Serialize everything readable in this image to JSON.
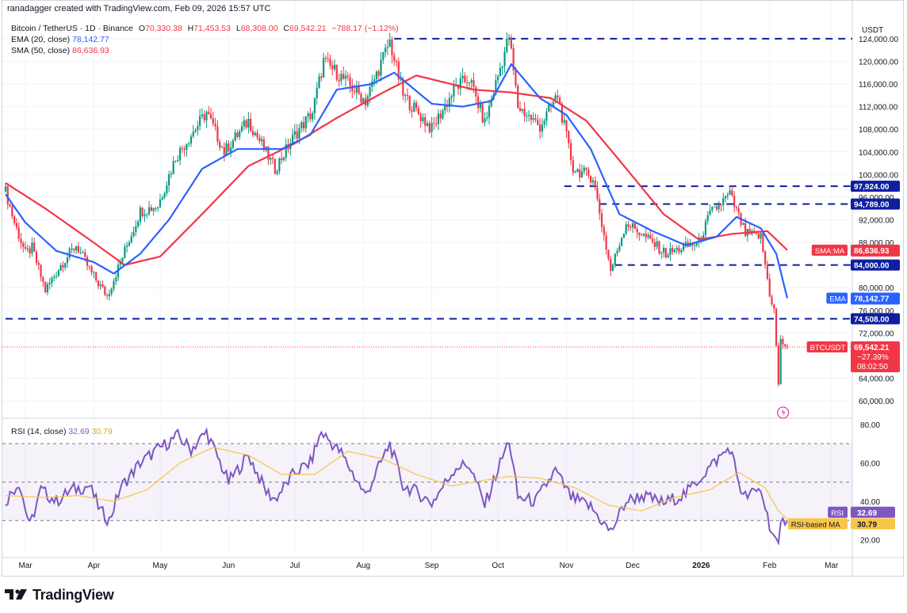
{
  "header": {
    "attribution": "ranadagger created with TradingView.com, Feb 09, 2026 15:57 UTC",
    "symbol": "Bitcoin / TetherUS · 1D · Binance",
    "ohlc": {
      "o_label": "O",
      "o": "70,330.38",
      "h_label": "H",
      "h": "71,453.53",
      "l_label": "L",
      "l": "68,308.00",
      "c_label": "C",
      "c": "69,542.21",
      "change": "−788.17 (−1.12%)"
    },
    "ema_label": "EMA (20, close)",
    "ema_value": "78,142.77",
    "sma_label": "SMA (50, close)",
    "sma_value": "86,636.93"
  },
  "rsi_header": {
    "label": "RSI (14, close)",
    "rsi": "32.69",
    "ma": "30.79"
  },
  "footer": {
    "brand": "TradingView"
  },
  "colors": {
    "up": "#089981",
    "down": "#f23645",
    "ema": "#2962ff",
    "sma": "#f23645",
    "rsi": "#7e57c2",
    "rsi_ma": "#f7c548",
    "level": "#0d1ea0"
  },
  "chart_data": [
    {
      "type": "candlestick",
      "currency_label": "USDT",
      "y_ticks": [
        "124,000.00",
        "120,000.00",
        "116,000.00",
        "112,000.00",
        "108,000.00",
        "104,000.00",
        "100,000.00",
        "96,000.00",
        "92,000.00",
        "88,000.00",
        "80,000.00",
        "76,000.00",
        "72,000.00",
        "64,000.00",
        "60,000.00"
      ],
      "y_tick_values": [
        124000,
        120000,
        116000,
        112000,
        108000,
        104000,
        100000,
        96000,
        92000,
        88000,
        80000,
        76000,
        72000,
        64000,
        60000
      ],
      "ylim": [
        57500,
        126500
      ],
      "x_labels": [
        "Mar",
        "Apr",
        "May",
        "Jun",
        "Jul",
        "Aug",
        "Sep",
        "Oct",
        "Nov",
        "Dec",
        "2026",
        "Feb",
        "Mar"
      ],
      "x_label_dates": [
        "2025-03-01",
        "2025-04-01",
        "2025-05-01",
        "2025-06-01",
        "2025-07-01",
        "2025-08-01",
        "2025-09-01",
        "2025-10-01",
        "2025-11-01",
        "2025-12-01",
        "2026-01-01",
        "2026-02-01",
        "2026-03-01"
      ],
      "x_range": [
        "2025-02-20",
        "2026-03-09"
      ],
      "levels": [
        {
          "value": 124000,
          "label": "",
          "start": "2025-08-15"
        },
        {
          "value": 97924,
          "label": "97,924.00",
          "start": "2025-10-31"
        },
        {
          "value": 94789,
          "label": "94,789.00",
          "start": "2025-11-16"
        },
        {
          "value": 84000,
          "label": "84,000.00",
          "start": "2025-11-23"
        },
        {
          "value": 74508,
          "label": "74,508.00",
          "start": "2025-02-20"
        }
      ],
      "price_tags": [
        {
          "label": "SMA:MA",
          "value": "86,636.93",
          "y": 86636.93,
          "color": "#f23645"
        },
        {
          "label": "EMA",
          "value": "78,142.77",
          "y": 78142.77,
          "color": "#2962ff"
        },
        {
          "label": "BTCUSDT",
          "value": "69,542.21",
          "extra": [
            "−27.39%",
            "08:02:50"
          ],
          "y": 69542.21,
          "color": "#f23645"
        }
      ],
      "close_anchors": [
        [
          "2025-02-20",
          97000
        ],
        [
          "2025-02-24",
          91500
        ],
        [
          "2025-03-01",
          86000
        ],
        [
          "2025-03-04",
          87000
        ],
        [
          "2025-03-10",
          79500
        ],
        [
          "2025-03-17",
          84000
        ],
        [
          "2025-03-24",
          87500
        ],
        [
          "2025-03-31",
          82500
        ],
        [
          "2025-04-07",
          78500
        ],
        [
          "2025-04-12",
          83500
        ],
        [
          "2025-04-22",
          93500
        ],
        [
          "2025-04-30",
          94500
        ],
        [
          "2025-05-08",
          103000
        ],
        [
          "2025-05-22",
          111000
        ],
        [
          "2025-05-30",
          104000
        ],
        [
          "2025-06-10",
          109500
        ],
        [
          "2025-06-22",
          101000
        ],
        [
          "2025-07-01",
          107000
        ],
        [
          "2025-07-09",
          111000
        ],
        [
          "2025-07-14",
          120000
        ],
        [
          "2025-07-20",
          118000
        ],
        [
          "2025-08-02",
          113000
        ],
        [
          "2025-08-13",
          123500
        ],
        [
          "2025-08-19",
          114000
        ],
        [
          "2025-09-01",
          108000
        ],
        [
          "2025-09-12",
          115500
        ],
        [
          "2025-09-18",
          117000
        ],
        [
          "2025-09-25",
          109000
        ],
        [
          "2025-10-06",
          124500
        ],
        [
          "2025-10-10",
          112000
        ],
        [
          "2025-10-20",
          108500
        ],
        [
          "2025-10-28",
          114000
        ],
        [
          "2025-11-04",
          101000
        ],
        [
          "2025-11-13",
          99500
        ],
        [
          "2025-11-21",
          83000
        ],
        [
          "2025-11-28",
          91500
        ],
        [
          "2025-12-05",
          89500
        ],
        [
          "2025-12-16",
          86000
        ],
        [
          "2025-12-31",
          88000
        ],
        [
          "2026-01-05",
          93000
        ],
        [
          "2026-01-14",
          96500
        ],
        [
          "2026-01-21",
          89500
        ],
        [
          "2026-01-28",
          89000
        ],
        [
          "2026-02-01",
          79000
        ],
        [
          "2026-02-03",
          76000
        ],
        [
          "2026-02-05",
          63000
        ],
        [
          "2026-02-06",
          70500
        ],
        [
          "2026-02-09",
          69542
        ]
      ],
      "ema_anchors": [
        [
          "2025-02-20",
          96500
        ],
        [
          "2025-03-01",
          91500
        ],
        [
          "2025-03-15",
          86500
        ],
        [
          "2025-04-01",
          84500
        ],
        [
          "2025-04-10",
          82500
        ],
        [
          "2025-04-22",
          86000
        ],
        [
          "2025-05-05",
          92000
        ],
        [
          "2025-05-20",
          101000
        ],
        [
          "2025-06-05",
          104500
        ],
        [
          "2025-06-25",
          104500
        ],
        [
          "2025-07-08",
          107000
        ],
        [
          "2025-07-20",
          115000
        ],
        [
          "2025-08-05",
          116000
        ],
        [
          "2025-08-15",
          118000
        ],
        [
          "2025-09-01",
          112500
        ],
        [
          "2025-09-15",
          112000
        ],
        [
          "2025-09-28",
          113000
        ],
        [
          "2025-10-07",
          119500
        ],
        [
          "2025-10-20",
          113500
        ],
        [
          "2025-11-01",
          110500
        ],
        [
          "2025-11-12",
          104500
        ],
        [
          "2025-11-25",
          93000
        ],
        [
          "2025-12-10",
          90000
        ],
        [
          "2025-12-25",
          87500
        ],
        [
          "2026-01-08",
          89000
        ],
        [
          "2026-01-17",
          92500
        ],
        [
          "2026-01-28",
          90500
        ],
        [
          "2026-02-04",
          86000
        ],
        [
          "2026-02-09",
          78142
        ]
      ],
      "sma_anchors": [
        [
          "2025-02-20",
          98500
        ],
        [
          "2025-03-10",
          94000
        ],
        [
          "2025-03-30",
          88500
        ],
        [
          "2025-04-15",
          84000
        ],
        [
          "2025-05-01",
          85500
        ],
        [
          "2025-05-20",
          93000
        ],
        [
          "2025-06-10",
          101500
        ],
        [
          "2025-07-01",
          105500
        ],
        [
          "2025-07-20",
          110000
        ],
        [
          "2025-08-10",
          114500
        ],
        [
          "2025-08-25",
          117500
        ],
        [
          "2025-09-20",
          115000
        ],
        [
          "2025-10-07",
          114500
        ],
        [
          "2025-10-25",
          113500
        ],
        [
          "2025-11-10",
          109500
        ],
        [
          "2025-11-25",
          102500
        ],
        [
          "2025-12-15",
          93000
        ],
        [
          "2025-12-31",
          88500
        ],
        [
          "2026-01-15",
          89500
        ],
        [
          "2026-01-31",
          90000
        ],
        [
          "2026-02-09",
          86637
        ]
      ]
    },
    {
      "type": "line",
      "title": "RSI (14, close)",
      "y_ticks": [
        "80.00",
        "60.00",
        "40.00",
        "20.00"
      ],
      "y_tick_values": [
        80,
        60,
        40,
        20
      ],
      "ylim": [
        12,
        82
      ],
      "bands": {
        "upper": 70,
        "middle": 50,
        "lower": 30
      },
      "price_tags": [
        {
          "label": "RSI",
          "value": "32.69",
          "y": 32.69,
          "color": "#7e57c2"
        },
        {
          "label": "RSI-based MA",
          "value": "30.79",
          "y": 30.79,
          "color": "#f7c548"
        }
      ],
      "series": [
        {
          "name": "RSI",
          "anchors": [
            [
              "2025-02-20",
              40
            ],
            [
              "2025-02-26",
              50
            ],
            [
              "2025-03-03",
              27
            ],
            [
              "2025-03-08",
              46
            ],
            [
              "2025-03-15",
              40
            ],
            [
              "2025-03-22",
              46
            ],
            [
              "2025-03-30",
              48
            ],
            [
              "2025-04-04",
              35
            ],
            [
              "2025-04-08",
              30
            ],
            [
              "2025-04-13",
              47
            ],
            [
              "2025-04-22",
              60
            ],
            [
              "2025-04-30",
              67
            ],
            [
              "2025-05-09",
              74
            ],
            [
              "2025-05-15",
              67
            ],
            [
              "2025-05-22",
              76
            ],
            [
              "2025-06-01",
              50
            ],
            [
              "2025-06-10",
              64
            ],
            [
              "2025-06-18",
              45
            ],
            [
              "2025-06-22",
              41
            ],
            [
              "2025-07-01",
              55
            ],
            [
              "2025-07-08",
              60
            ],
            [
              "2025-07-13",
              76
            ],
            [
              "2025-07-22",
              65
            ],
            [
              "2025-08-02",
              43
            ],
            [
              "2025-08-13",
              70
            ],
            [
              "2025-08-19",
              48
            ],
            [
              "2025-08-25",
              45
            ],
            [
              "2025-09-01",
              39
            ],
            [
              "2025-09-12",
              58
            ],
            [
              "2025-09-18",
              59
            ],
            [
              "2025-09-25",
              38
            ],
            [
              "2025-10-06",
              72
            ],
            [
              "2025-10-10",
              42
            ],
            [
              "2025-10-18",
              40
            ],
            [
              "2025-10-27",
              56
            ],
            [
              "2025-11-03",
              42
            ],
            [
              "2025-11-12",
              37
            ],
            [
              "2025-11-21",
              24
            ],
            [
              "2025-11-28",
              40
            ],
            [
              "2025-12-05",
              43
            ],
            [
              "2025-12-15",
              39
            ],
            [
              "2025-12-25",
              44
            ],
            [
              "2026-01-05",
              58
            ],
            [
              "2026-01-14",
              68
            ],
            [
              "2026-01-20",
              42
            ],
            [
              "2026-01-28",
              46
            ],
            [
              "2026-02-01",
              28
            ],
            [
              "2026-02-05",
              15
            ],
            [
              "2026-02-06",
              27
            ],
            [
              "2026-02-09",
              32.69
            ]
          ]
        },
        {
          "name": "RSI-based MA",
          "anchors": [
            [
              "2025-02-20",
              43
            ],
            [
              "2025-03-10",
              42
            ],
            [
              "2025-03-25",
              43
            ],
            [
              "2025-04-10",
              40
            ],
            [
              "2025-04-25",
              46
            ],
            [
              "2025-05-10",
              60
            ],
            [
              "2025-05-25",
              68
            ],
            [
              "2025-06-10",
              64
            ],
            [
              "2025-06-25",
              54
            ],
            [
              "2025-07-10",
              54
            ],
            [
              "2025-07-25",
              66
            ],
            [
              "2025-08-10",
              62
            ],
            [
              "2025-08-25",
              54
            ],
            [
              "2025-09-10",
              48
            ],
            [
              "2025-09-25",
              51
            ],
            [
              "2025-10-06",
              53
            ],
            [
              "2025-10-20",
              52
            ],
            [
              "2025-11-05",
              47
            ],
            [
              "2025-11-20",
              38
            ],
            [
              "2025-12-05",
              35
            ],
            [
              "2025-12-20",
              42
            ],
            [
              "2026-01-05",
              46
            ],
            [
              "2026-01-18",
              55
            ],
            [
              "2026-01-30",
              47
            ],
            [
              "2026-02-05",
              35
            ],
            [
              "2026-02-09",
              30.79
            ]
          ]
        }
      ]
    }
  ]
}
